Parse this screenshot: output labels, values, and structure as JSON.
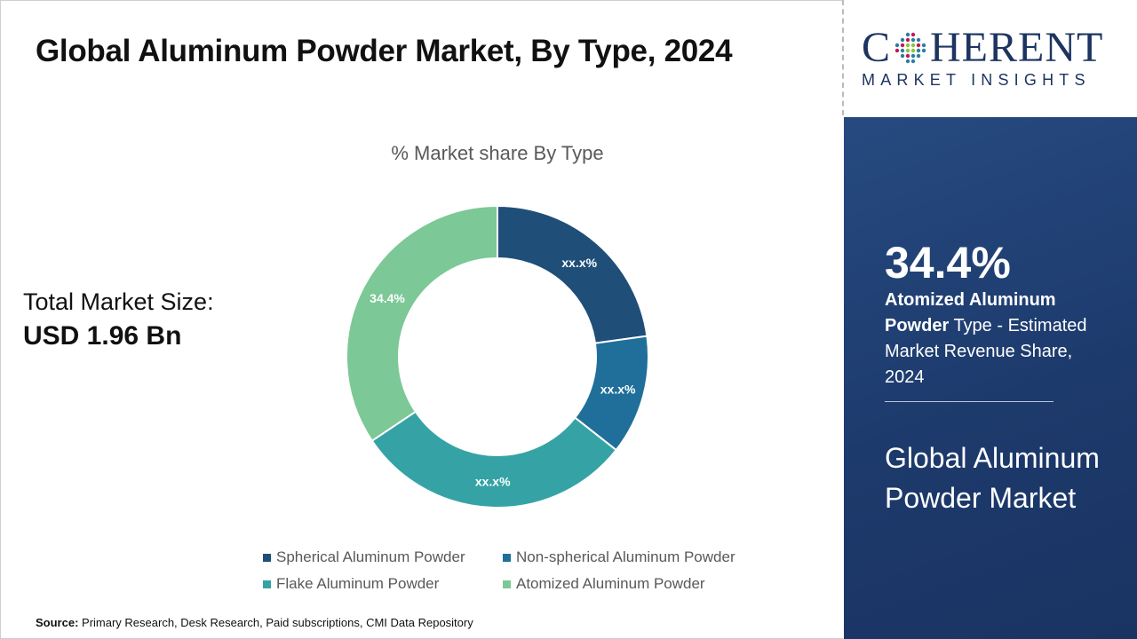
{
  "title": "Global Aluminum Powder Market, By Type, 2024",
  "logo": {
    "main_before": "C",
    "main_after": "HERENT",
    "sub": "MARKET INSIGHTS"
  },
  "total": {
    "label": "Total Market Size:",
    "value": "USD 1.96 Bn"
  },
  "panel": {
    "percent": "34.4%",
    "highlight": "Atomized Aluminum Powder",
    "description": " Type - Estimated Market Revenue Share, 2024",
    "market_name": "Global Aluminum Powder Market"
  },
  "source": {
    "label": "Source:",
    "text": " Primary Research, Desk Research, Paid subscriptions, CMI Data Repository"
  },
  "chart_data": {
    "type": "pie",
    "variant": "donut",
    "title": "% Market share By Type",
    "categories": [
      "Spherical Aluminum Powder",
      "Non-spherical Aluminum Powder",
      "Flake Aluminum Powder",
      "Atomized Aluminum Powder"
    ],
    "values": [
      22.8,
      12.8,
      30.0,
      34.4
    ],
    "data_labels": [
      "xx.x%",
      "xx.x%",
      "xx.x%",
      "34.4%"
    ],
    "colors": [
      "#1f4e79",
      "#1f6f9a",
      "#35a3a5",
      "#7cc896"
    ],
    "legend_position": "bottom"
  }
}
